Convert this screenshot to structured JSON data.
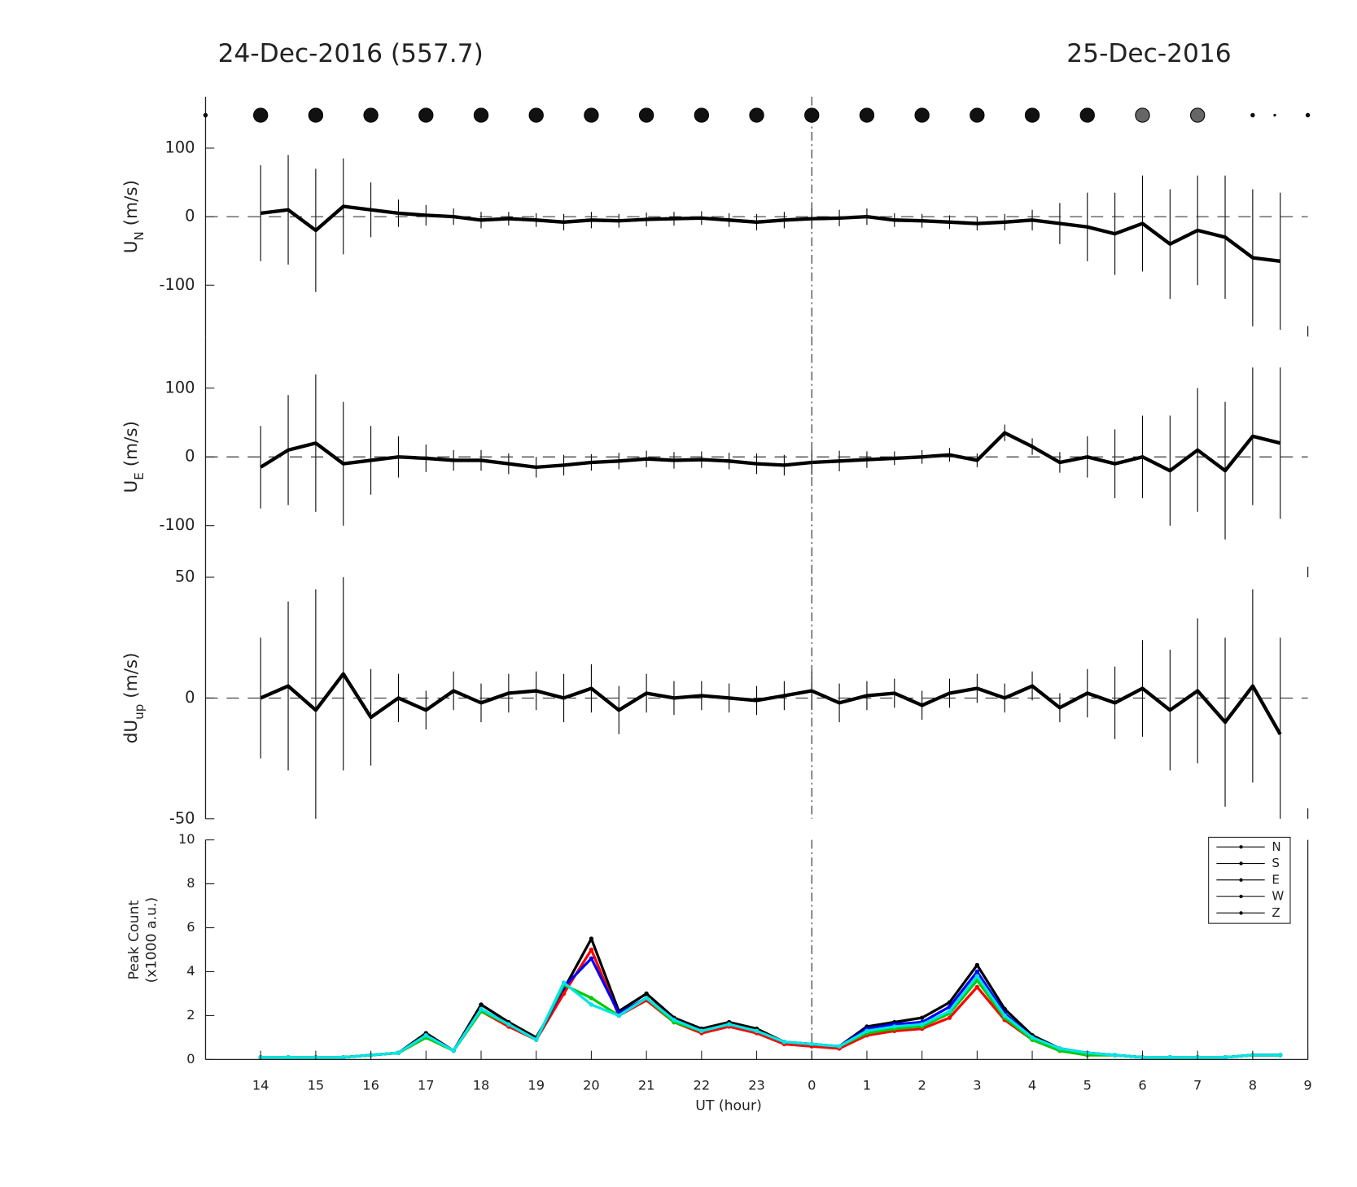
{
  "chart_data": [
    {
      "type": "errorbar",
      "titles": [
        "24-Dec-2016 (557.7)",
        "25-Dec-2016"
      ],
      "cloud_markers": {
        "x": [
          13,
          14,
          15,
          16,
          17,
          18,
          19,
          20,
          21,
          22,
          23,
          24,
          25,
          26,
          27,
          28,
          29,
          30,
          31,
          32,
          32.4,
          33
        ],
        "size": [
          2,
          8,
          8,
          8,
          8,
          8,
          8,
          8,
          8,
          8,
          8,
          8,
          8,
          8,
          8,
          8,
          8,
          8,
          8,
          2,
          1,
          2
        ],
        "color": [
          "#111111",
          "#111111",
          "#111111",
          "#111111",
          "#111111",
          "#111111",
          "#111111",
          "#111111",
          "#111111",
          "#111111",
          "#111111",
          "#111111",
          "#111111",
          "#111111",
          "#111111",
          "#111111",
          "#111111",
          "#666666",
          "#666666",
          "#111111",
          "#111111",
          "#111111"
        ]
      },
      "ylabel": [
        "U",
        "N",
        " (m/s)"
      ],
      "xlim": [
        13,
        33
      ],
      "ylim": [
        -175,
        175
      ],
      "yticks": [
        -100,
        0,
        100
      ],
      "zero_line": 0,
      "vline": 24,
      "x": [
        14,
        14.5,
        15,
        15.5,
        16,
        16.5,
        17,
        17.5,
        18,
        18.5,
        19,
        19.5,
        20,
        20.5,
        21,
        21.5,
        22,
        22.5,
        23,
        23.5,
        24,
        24.5,
        25,
        25.5,
        26,
        26.5,
        27,
        27.5,
        28,
        28.5,
        29,
        29.5,
        30,
        30.5,
        31,
        31.5,
        32,
        32.5
      ],
      "series": [
        {
          "color": "#000000",
          "values": [
            5,
            10,
            -20,
            15,
            10,
            5,
            2,
            0,
            -5,
            -3,
            -5,
            -8,
            -5,
            -6,
            -4,
            -3,
            -2,
            -5,
            -8,
            -5,
            -3,
            -2,
            0,
            -5,
            -6,
            -8,
            -10,
            -8,
            -5,
            -10,
            -15,
            -25,
            -10,
            -40,
            -20,
            -30,
            -60,
            -65
          ],
          "errors": [
            70,
            80,
            90,
            70,
            40,
            20,
            15,
            12,
            12,
            10,
            10,
            12,
            12,
            10,
            10,
            10,
            10,
            10,
            12,
            12,
            15,
            12,
            12,
            10,
            10,
            10,
            10,
            12,
            15,
            30,
            50,
            60,
            70,
            80,
            80,
            90,
            100,
            100
          ]
        }
      ]
    },
    {
      "type": "errorbar",
      "ylabel": [
        "U",
        "E",
        " (m/s)"
      ],
      "xlim": [
        13,
        33
      ],
      "ylim": [
        -175,
        175
      ],
      "yticks": [
        -100,
        0,
        100
      ],
      "zero_line": 0,
      "vline": 24,
      "x": [
        14,
        14.5,
        15,
        15.5,
        16,
        16.5,
        17,
        17.5,
        18,
        18.5,
        19,
        19.5,
        20,
        20.5,
        21,
        21.5,
        22,
        22.5,
        23,
        23.5,
        24,
        24.5,
        25,
        25.5,
        26,
        26.5,
        27,
        27.5,
        28,
        28.5,
        29,
        29.5,
        30,
        30.5,
        31,
        31.5,
        32,
        32.5
      ],
      "series": [
        {
          "color": "#000000",
          "values": [
            -15,
            10,
            20,
            -10,
            -5,
            0,
            -2,
            -5,
            -5,
            -10,
            -15,
            -12,
            -8,
            -6,
            -3,
            -5,
            -4,
            -6,
            -10,
            -12,
            -8,
            -6,
            -4,
            -2,
            0,
            3,
            -5,
            35,
            15,
            -8,
            0,
            -10,
            0,
            -20,
            10,
            -20,
            30,
            20
          ],
          "errors": [
            60,
            80,
            100,
            90,
            50,
            30,
            20,
            15,
            15,
            15,
            15,
            15,
            12,
            12,
            12,
            12,
            12,
            12,
            15,
            15,
            18,
            15,
            12,
            10,
            10,
            10,
            10,
            12,
            12,
            15,
            30,
            50,
            60,
            80,
            90,
            100,
            100,
            110
          ]
        }
      ]
    },
    {
      "type": "errorbar",
      "ylabel": [
        "dU",
        "up",
        " (m/s)"
      ],
      "xlim": [
        13,
        33
      ],
      "ylim": [
        -50,
        50
      ],
      "yticks": [
        -50,
        0,
        50
      ],
      "zero_line": 0,
      "vline": 24,
      "x": [
        14,
        14.5,
        15,
        15.5,
        16,
        16.5,
        17,
        17.5,
        18,
        18.5,
        19,
        19.5,
        20,
        20.5,
        21,
        21.5,
        22,
        22.5,
        23,
        23.5,
        24,
        24.5,
        25,
        25.5,
        26,
        26.5,
        27,
        27.5,
        28,
        28.5,
        29,
        29.5,
        30,
        30.5,
        31,
        31.5,
        32,
        32.5
      ],
      "series": [
        {
          "color": "#000000",
          "values": [
            0,
            5,
            -5,
            10,
            -8,
            0,
            -5,
            3,
            -2,
            2,
            3,
            0,
            4,
            -5,
            2,
            0,
            1,
            0,
            -1,
            1,
            3,
            -2,
            1,
            2,
            -3,
            2,
            4,
            0,
            5,
            -4,
            2,
            -2,
            4,
            -5,
            3,
            -10,
            5,
            -15
          ],
          "errors": [
            25,
            35,
            50,
            40,
            20,
            10,
            8,
            8,
            8,
            8,
            8,
            10,
            10,
            10,
            8,
            7,
            6,
            6,
            6,
            6,
            8,
            8,
            6,
            6,
            6,
            6,
            6,
            6,
            6,
            6,
            10,
            15,
            20,
            25,
            30,
            35,
            40,
            40
          ]
        }
      ]
    },
    {
      "type": "line_dots",
      "ylabel_lines": [
        "Peak Count",
        "(x1000 a.u.)"
      ],
      "xlabel": "UT (hour)",
      "xlim": [
        13,
        33
      ],
      "ylim": [
        0,
        10
      ],
      "yticks": [
        0,
        2,
        4,
        6,
        8,
        10
      ],
      "vline": 24,
      "xticks": [
        14,
        15,
        16,
        17,
        18,
        19,
        20,
        21,
        22,
        23,
        {
          "value": 24,
          "label": "0"
        },
        {
          "value": 25,
          "label": "1"
        },
        {
          "value": 26,
          "label": "2"
        },
        {
          "value": 27,
          "label": "3"
        },
        {
          "value": 28,
          "label": "4"
        },
        {
          "value": 29,
          "label": "5"
        },
        {
          "value": 30,
          "label": "6"
        },
        {
          "value": 31,
          "label": "7"
        },
        {
          "value": 32,
          "label": "8"
        },
        {
          "value": 33,
          "label": "9"
        }
      ],
      "legend": "upper right",
      "legend_line_color": "#000000",
      "x": [
        14,
        14.5,
        15,
        15.5,
        16,
        16.5,
        17,
        17.5,
        18,
        18.5,
        19,
        19.5,
        20,
        20.5,
        21,
        21.5,
        22,
        22.5,
        23,
        23.5,
        24,
        24.5,
        25,
        25.5,
        26,
        26.5,
        27,
        27.5,
        28,
        28.5,
        29,
        29.5,
        30,
        30.5,
        31,
        31.5,
        32,
        32.5
      ],
      "series": [
        {
          "name": "N",
          "color": "#000000",
          "values": [
            0.1,
            0.1,
            0.1,
            0.1,
            0.2,
            0.3,
            1.2,
            0.4,
            2.5,
            1.7,
            1.0,
            3.2,
            5.5,
            2.2,
            3.0,
            1.9,
            1.4,
            1.7,
            1.4,
            0.8,
            0.7,
            0.6,
            1.5,
            1.7,
            1.9,
            2.6,
            4.3,
            2.3,
            1.1,
            0.5,
            0.3,
            0.2,
            0.1,
            0.1,
            0.1,
            0.1,
            0.2,
            0.2
          ]
        },
        {
          "name": "S",
          "color": "#ff0000",
          "values": [
            0.1,
            0.1,
            0.1,
            0.1,
            0.2,
            0.3,
            1.0,
            0.4,
            2.2,
            1.5,
            0.9,
            3.0,
            5.0,
            2.0,
            2.7,
            1.7,
            1.2,
            1.5,
            1.2,
            0.7,
            0.6,
            0.5,
            1.1,
            1.3,
            1.4,
            1.9,
            3.3,
            1.8,
            0.9,
            0.4,
            0.2,
            0.2,
            0.1,
            0.1,
            0.1,
            0.1,
            0.2,
            0.2
          ]
        },
        {
          "name": "E",
          "color": "#0000ff",
          "values": [
            0.1,
            0.1,
            0.1,
            0.1,
            0.2,
            0.3,
            1.1,
            0.4,
            2.3,
            1.6,
            0.9,
            3.3,
            4.6,
            2.1,
            2.8,
            1.8,
            1.3,
            1.6,
            1.3,
            0.8,
            0.7,
            0.6,
            1.4,
            1.6,
            1.7,
            2.4,
            4.0,
            2.1,
            1.0,
            0.5,
            0.3,
            0.2,
            0.1,
            0.1,
            0.1,
            0.1,
            0.2,
            0.2
          ]
        },
        {
          "name": "W",
          "color": "#00cc00",
          "values": [
            0.1,
            0.1,
            0.1,
            0.1,
            0.2,
            0.3,
            1.0,
            0.4,
            2.2,
            1.6,
            0.9,
            3.4,
            2.8,
            2.0,
            2.8,
            1.7,
            1.3,
            1.6,
            1.3,
            0.8,
            0.7,
            0.6,
            1.2,
            1.4,
            1.5,
            2.1,
            3.6,
            1.9,
            0.9,
            0.4,
            0.2,
            0.2,
            0.1,
            0.1,
            0.1,
            0.1,
            0.2,
            0.2
          ]
        },
        {
          "name": "Z",
          "color": "#00e5e5",
          "values": [
            0.1,
            0.1,
            0.1,
            0.1,
            0.2,
            0.3,
            1.1,
            0.4,
            2.3,
            1.6,
            0.9,
            3.5,
            2.5,
            2.0,
            2.8,
            1.8,
            1.3,
            1.6,
            1.3,
            0.8,
            0.7,
            0.6,
            1.3,
            1.5,
            1.6,
            2.2,
            3.8,
            2.0,
            1.0,
            0.5,
            0.3,
            0.2,
            0.1,
            0.1,
            0.1,
            0.1,
            0.2,
            0.2
          ]
        }
      ]
    }
  ]
}
